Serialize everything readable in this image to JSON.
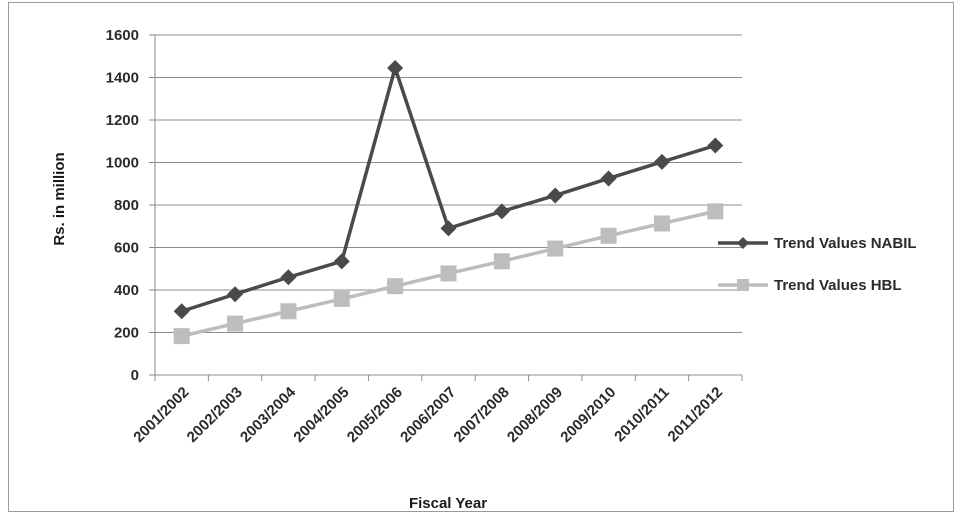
{
  "chart_data": {
    "type": "line",
    "title": "",
    "xlabel": "Fiscal Year",
    "ylabel": "Rs. in million",
    "ylim": [
      0,
      1600
    ],
    "yticks": [
      0,
      200,
      400,
      600,
      800,
      1000,
      1200,
      1400,
      1600
    ],
    "grid": true,
    "legend_position": "right",
    "categories": [
      "2001/2002",
      "2002/2003",
      "2003/2004",
      "2004/2005",
      "2005/2006",
      "2006/2007",
      "2007/2008",
      "2008/2009",
      "2009/2010",
      "2010/2011",
      "2011/2012"
    ],
    "series": [
      {
        "name": "Trend Values NABIL",
        "marker": "diamond",
        "color": "#4a4a4a",
        "values": [
          300,
          380,
          460,
          535,
          1445,
          690,
          770,
          845,
          925,
          1003,
          1080
        ]
      },
      {
        "name": "Trend Values HBL",
        "marker": "square",
        "color": "#bdbdbd",
        "values": [
          183,
          242,
          300,
          358,
          418,
          478,
          535,
          595,
          655,
          713,
          770
        ]
      }
    ]
  }
}
